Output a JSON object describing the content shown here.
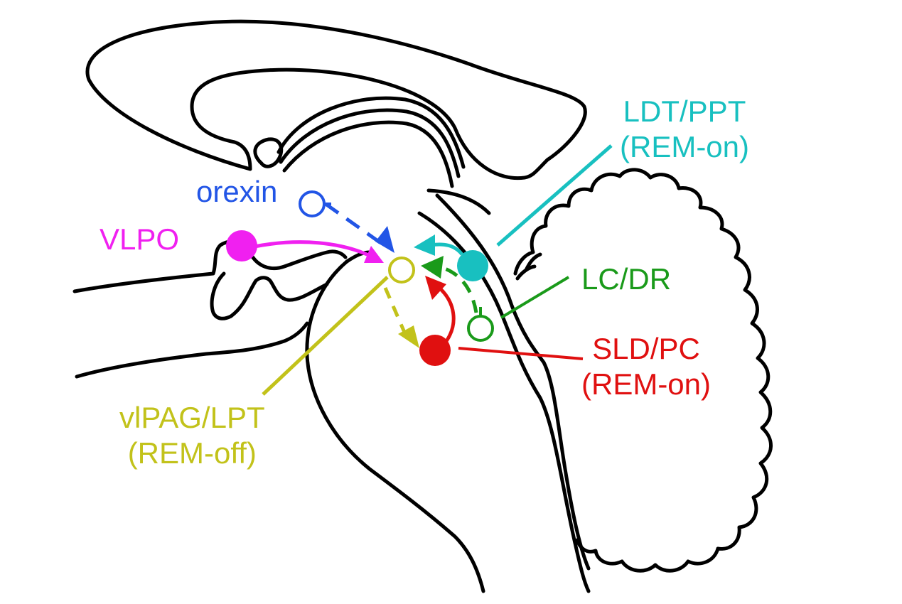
{
  "colors": {
    "outline": "#000000",
    "orexin": "#2255e6",
    "vlpo": "#f020f0",
    "ldt_ppt": "#18c0c0",
    "lc_dr": "#1a9a1a",
    "sld_pc": "#e01010",
    "vlpag_lpt": "#c2c21a"
  },
  "labels": {
    "orexin": "orexin",
    "vlpo": "VLPO",
    "ldt_ppt_line1": "LDT/PPT",
    "ldt_ppt_line2": "(REM-on)",
    "lc_dr": "LC/DR",
    "sld_pc_line1": "SLD/PC",
    "sld_pc_line2": "(REM-on)",
    "vlpag_lpt_line1": "vlPAG/LPT",
    "vlpag_lpt_line2": "(REM-off)"
  },
  "nodes": {
    "orexin": {
      "style": "open"
    },
    "vlpo": {
      "style": "filled"
    },
    "vlpag_lpt": {
      "style": "open"
    },
    "ldt_ppt": {
      "style": "filled"
    },
    "lc_dr": {
      "style": "open"
    },
    "sld_pc": {
      "style": "filled"
    }
  },
  "connections": [
    {
      "from": "orexin",
      "to": "vlpag_lpt",
      "line": "dashed"
    },
    {
      "from": "vlpo",
      "to": "vlpag_lpt",
      "line": "solid"
    },
    {
      "from": "ldt_ppt",
      "to": "vlpag_lpt",
      "line": "solid"
    },
    {
      "from": "lc_dr",
      "to": "vlpag_lpt",
      "line": "dashed"
    },
    {
      "from": "sld_pc",
      "to": "vlpag_lpt",
      "line": "solid"
    },
    {
      "from": "vlpag_lpt",
      "to": "sld_pc",
      "line": "dashed"
    }
  ]
}
